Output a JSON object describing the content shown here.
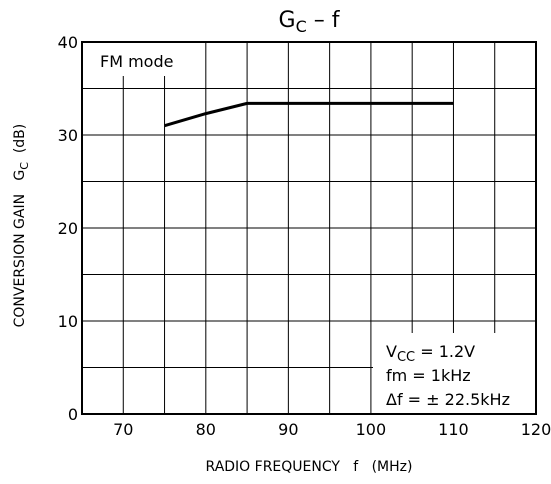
{
  "chart_data": {
    "type": "line",
    "title": {
      "main": "G",
      "sub": "C",
      "rest": " – f"
    },
    "xlabel": "RADIO FREQUENCY   f   (MHz)",
    "ylabel": {
      "main": "CONVERSION GAIN   G",
      "sub": "C",
      "rest": "  (dB)"
    },
    "xlim": [
      65,
      120
    ],
    "ylim": [
      0,
      40
    ],
    "x_ticks": [
      70,
      80,
      90,
      100,
      110,
      120
    ],
    "y_ticks": [
      0,
      10,
      20,
      30,
      40
    ],
    "x_grid_step": 5,
    "y_grid_step": 5,
    "grid": true,
    "annotations": {
      "mode": "FM mode",
      "conditions": [
        {
          "main": "V",
          "sub": "CC",
          "rest": " = 1.2V"
        },
        {
          "main": "fm = 1kHz",
          "sub": "",
          "rest": ""
        },
        {
          "main": "Δf = ± 22.5kHz",
          "sub": "",
          "rest": ""
        }
      ]
    },
    "series": [
      {
        "color": "#000000",
        "x": [
          75,
          80,
          85,
          90,
          95,
          100,
          105,
          110
        ],
        "y": [
          31.0,
          32.3,
          33.4,
          33.4,
          33.4,
          33.4,
          33.4,
          33.4
        ]
      }
    ]
  }
}
